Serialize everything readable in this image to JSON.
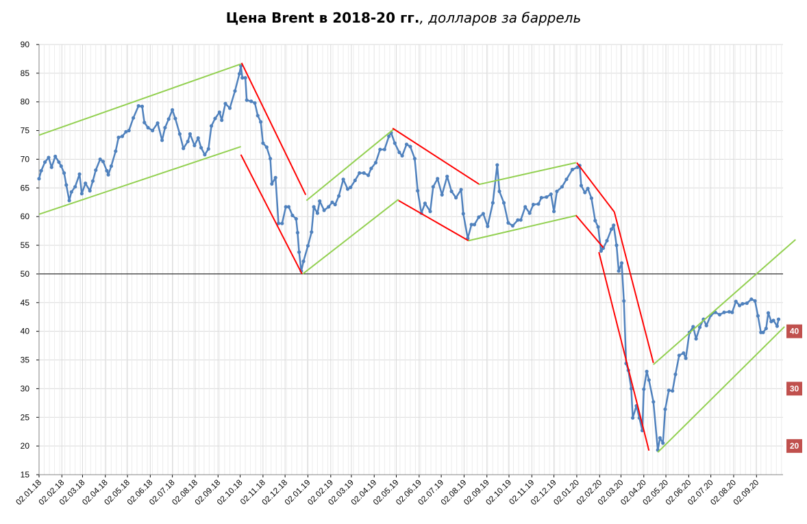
{
  "title": {
    "bold": "Цена Brent в 2018-20 гг.",
    "italic": ", долларов за баррель"
  },
  "chart_data": {
    "type": "line",
    "title": "Цена Brent в 2018-20 гг., долларов за баррель",
    "ylim": [
      15,
      90
    ],
    "yticks": [
      15,
      20,
      25,
      30,
      35,
      40,
      45,
      50,
      55,
      60,
      65,
      70,
      75,
      80,
      85,
      90
    ],
    "xlim": [
      "2018-01-02",
      "2020-10-08"
    ],
    "xtick_labels": [
      "02.01.18",
      "02.02.18",
      "02.03.18",
      "02.04.18",
      "02.05.18",
      "02.06.18",
      "02.07.18",
      "02.08.18",
      "02.09.18",
      "02.10.18",
      "02.11.18",
      "02.12.18",
      "02.01.19",
      "02.02.19",
      "02.03.19",
      "02.04.19",
      "02.05.19",
      "02.06.19",
      "02.07.19",
      "02.08.19",
      "02.09.19",
      "02.10.19",
      "02.11.19",
      "02.12.19",
      "02.01.20",
      "02.02.20",
      "02.03.20",
      "02.04.20",
      "02.05.20",
      "02.06.20",
      "02.07.20",
      "02.08.20",
      "02.09.20"
    ],
    "grid": true,
    "reference_line": 50,
    "series": [
      {
        "color": "#4f81bd",
        "points": [
          [
            "2018-01-02",
            66.6
          ],
          [
            "2018-01-05",
            68.0
          ],
          [
            "2018-01-10",
            69.5
          ],
          [
            "2018-01-15",
            70.3
          ],
          [
            "2018-01-19",
            68.6
          ],
          [
            "2018-01-24",
            70.5
          ],
          [
            "2018-01-29",
            69.5
          ],
          [
            "2018-02-01",
            68.8
          ],
          [
            "2018-02-05",
            67.6
          ],
          [
            "2018-02-08",
            65.5
          ],
          [
            "2018-02-12",
            62.8
          ],
          [
            "2018-02-15",
            64.3
          ],
          [
            "2018-02-20",
            65.2
          ],
          [
            "2018-02-26",
            67.4
          ],
          [
            "2018-03-01",
            64.0
          ],
          [
            "2018-03-06",
            65.8
          ],
          [
            "2018-03-12",
            64.5
          ],
          [
            "2018-03-16",
            66.2
          ],
          [
            "2018-03-20",
            68.1
          ],
          [
            "2018-03-26",
            70.0
          ],
          [
            "2018-03-30",
            69.6
          ],
          [
            "2018-04-04",
            68.0
          ],
          [
            "2018-04-06",
            67.3
          ],
          [
            "2018-04-10",
            68.8
          ],
          [
            "2018-04-16",
            71.4
          ],
          [
            "2018-04-20",
            73.8
          ],
          [
            "2018-04-25",
            74.0
          ],
          [
            "2018-04-30",
            74.8
          ],
          [
            "2018-05-04",
            75.0
          ],
          [
            "2018-05-10",
            77.2
          ],
          [
            "2018-05-17",
            79.3
          ],
          [
            "2018-05-22",
            79.2
          ],
          [
            "2018-05-25",
            76.4
          ],
          [
            "2018-05-30",
            75.5
          ],
          [
            "2018-06-05",
            75.0
          ],
          [
            "2018-06-12",
            76.3
          ],
          [
            "2018-06-18",
            73.3
          ],
          [
            "2018-06-22",
            75.5
          ],
          [
            "2018-06-27",
            77.0
          ],
          [
            "2018-07-02",
            78.6
          ],
          [
            "2018-07-06",
            77.1
          ],
          [
            "2018-07-12",
            74.4
          ],
          [
            "2018-07-17",
            71.9
          ],
          [
            "2018-07-23",
            73.1
          ],
          [
            "2018-07-26",
            74.4
          ],
          [
            "2018-08-01",
            72.4
          ],
          [
            "2018-08-06",
            73.7
          ],
          [
            "2018-08-10",
            72.0
          ],
          [
            "2018-08-15",
            70.8
          ],
          [
            "2018-08-20",
            71.8
          ],
          [
            "2018-08-24",
            75.8
          ],
          [
            "2018-08-29",
            77.1
          ],
          [
            "2018-09-04",
            78.2
          ],
          [
            "2018-09-07",
            76.8
          ],
          [
            "2018-09-12",
            79.7
          ],
          [
            "2018-09-18",
            78.9
          ],
          [
            "2018-09-25",
            81.9
          ],
          [
            "2018-10-01",
            84.9
          ],
          [
            "2018-10-03",
            86.3
          ],
          [
            "2018-10-05",
            84.2
          ],
          [
            "2018-10-09",
            84.2
          ],
          [
            "2018-10-11",
            80.3
          ],
          [
            "2018-10-17",
            80.1
          ],
          [
            "2018-10-22",
            79.8
          ],
          [
            "2018-10-26",
            77.6
          ],
          [
            "2018-10-30",
            76.5
          ],
          [
            "2018-11-02",
            72.8
          ],
          [
            "2018-11-07",
            72.1
          ],
          [
            "2018-11-12",
            70.1
          ],
          [
            "2018-11-14",
            65.7
          ],
          [
            "2018-11-19",
            66.8
          ],
          [
            "2018-11-23",
            58.8
          ],
          [
            "2018-11-28",
            58.8
          ],
          [
            "2018-12-03",
            61.7
          ],
          [
            "2018-12-07",
            61.7
          ],
          [
            "2018-12-12",
            60.2
          ],
          [
            "2018-12-17",
            59.6
          ],
          [
            "2018-12-19",
            57.2
          ],
          [
            "2018-12-21",
            53.8
          ],
          [
            "2018-12-24",
            50.5
          ],
          [
            "2018-12-27",
            52.2
          ],
          [
            "2019-01-02",
            54.9
          ],
          [
            "2019-01-07",
            57.3
          ],
          [
            "2019-01-10",
            61.7
          ],
          [
            "2019-01-15",
            60.6
          ],
          [
            "2019-01-18",
            62.7
          ],
          [
            "2019-01-24",
            61.1
          ],
          [
            "2019-01-30",
            61.7
          ],
          [
            "2019-02-04",
            62.5
          ],
          [
            "2019-02-08",
            62.1
          ],
          [
            "2019-02-13",
            63.6
          ],
          [
            "2019-02-19",
            66.5
          ],
          [
            "2019-02-25",
            64.8
          ],
          [
            "2019-03-01",
            65.1
          ],
          [
            "2019-03-07",
            66.3
          ],
          [
            "2019-03-13",
            67.6
          ],
          [
            "2019-03-19",
            67.6
          ],
          [
            "2019-03-25",
            67.2
          ],
          [
            "2019-03-29",
            68.4
          ],
          [
            "2019-04-04",
            69.4
          ],
          [
            "2019-04-10",
            71.7
          ],
          [
            "2019-04-16",
            71.7
          ],
          [
            "2019-04-22",
            74.0
          ],
          [
            "2019-04-25",
            74.6
          ],
          [
            "2019-04-30",
            72.8
          ],
          [
            "2019-05-06",
            71.2
          ],
          [
            "2019-05-10",
            70.6
          ],
          [
            "2019-05-16",
            72.6
          ],
          [
            "2019-05-21",
            72.2
          ],
          [
            "2019-05-27",
            70.1
          ],
          [
            "2019-05-31",
            64.5
          ],
          [
            "2019-06-05",
            60.6
          ],
          [
            "2019-06-10",
            62.3
          ],
          [
            "2019-06-17",
            60.9
          ],
          [
            "2019-06-21",
            65.2
          ],
          [
            "2019-06-27",
            66.6
          ],
          [
            "2019-07-03",
            63.8
          ],
          [
            "2019-07-10",
            67.0
          ],
          [
            "2019-07-16",
            64.4
          ],
          [
            "2019-07-22",
            63.3
          ],
          [
            "2019-07-29",
            64.7
          ],
          [
            "2019-08-01",
            60.5
          ],
          [
            "2019-08-07",
            56.2
          ],
          [
            "2019-08-12",
            58.6
          ],
          [
            "2019-08-16",
            58.6
          ],
          [
            "2019-08-22",
            59.9
          ],
          [
            "2019-08-28",
            60.5
          ],
          [
            "2019-09-03",
            58.3
          ],
          [
            "2019-09-10",
            62.4
          ],
          [
            "2019-09-16",
            69.0
          ],
          [
            "2019-09-19",
            64.4
          ],
          [
            "2019-09-25",
            62.4
          ],
          [
            "2019-10-01",
            58.9
          ],
          [
            "2019-10-07",
            58.4
          ],
          [
            "2019-10-14",
            59.4
          ],
          [
            "2019-10-18",
            59.4
          ],
          [
            "2019-10-24",
            61.7
          ],
          [
            "2019-10-30",
            60.6
          ],
          [
            "2019-11-04",
            62.1
          ],
          [
            "2019-11-11",
            62.2
          ],
          [
            "2019-11-15",
            63.3
          ],
          [
            "2019-11-22",
            63.4
          ],
          [
            "2019-11-28",
            63.9
          ],
          [
            "2019-12-02",
            60.9
          ],
          [
            "2019-12-06",
            64.4
          ],
          [
            "2019-12-13",
            65.2
          ],
          [
            "2019-12-19",
            66.5
          ],
          [
            "2019-12-27",
            68.2
          ],
          [
            "2020-01-03",
            68.6
          ],
          [
            "2020-01-06",
            68.9
          ],
          [
            "2020-01-08",
            65.4
          ],
          [
            "2020-01-13",
            64.2
          ],
          [
            "2020-01-17",
            64.9
          ],
          [
            "2020-01-22",
            63.2
          ],
          [
            "2020-01-27",
            59.3
          ],
          [
            "2020-01-31",
            58.2
          ],
          [
            "2020-02-04",
            54.0
          ],
          [
            "2020-02-07",
            54.5
          ],
          [
            "2020-02-12",
            55.8
          ],
          [
            "2020-02-18",
            57.8
          ],
          [
            "2020-02-21",
            58.5
          ],
          [
            "2020-02-25",
            55.0
          ],
          [
            "2020-02-28",
            50.5
          ],
          [
            "2020-03-03",
            51.9
          ],
          [
            "2020-03-06",
            45.3
          ],
          [
            "2020-03-09",
            34.4
          ],
          [
            "2020-03-12",
            33.2
          ],
          [
            "2020-03-16",
            30.0
          ],
          [
            "2020-03-18",
            24.9
          ],
          [
            "2020-03-23",
            27.0
          ],
          [
            "2020-03-27",
            24.9
          ],
          [
            "2020-03-31",
            22.7
          ],
          [
            "2020-04-02",
            29.9
          ],
          [
            "2020-04-06",
            33.0
          ],
          [
            "2020-04-09",
            31.5
          ],
          [
            "2020-04-15",
            27.7
          ],
          [
            "2020-04-21",
            19.3
          ],
          [
            "2020-04-24",
            21.4
          ],
          [
            "2020-04-28",
            20.5
          ],
          [
            "2020-05-01",
            26.4
          ],
          [
            "2020-05-06",
            29.7
          ],
          [
            "2020-05-11",
            29.6
          ],
          [
            "2020-05-15",
            32.5
          ],
          [
            "2020-05-20",
            35.8
          ],
          [
            "2020-05-26",
            36.2
          ],
          [
            "2020-05-29",
            35.3
          ],
          [
            "2020-06-03",
            39.8
          ],
          [
            "2020-06-08",
            40.8
          ],
          [
            "2020-06-12",
            38.7
          ],
          [
            "2020-06-17",
            40.7
          ],
          [
            "2020-06-22",
            42.1
          ],
          [
            "2020-06-26",
            41.0
          ],
          [
            "2020-07-02",
            42.8
          ],
          [
            "2020-07-08",
            43.3
          ],
          [
            "2020-07-14",
            42.9
          ],
          [
            "2020-07-20",
            43.3
          ],
          [
            "2020-07-27",
            43.4
          ],
          [
            "2020-07-31",
            43.3
          ],
          [
            "2020-08-05",
            45.2
          ],
          [
            "2020-08-10",
            44.5
          ],
          [
            "2020-08-14",
            44.8
          ],
          [
            "2020-08-20",
            44.9
          ],
          [
            "2020-08-26",
            45.6
          ],
          [
            "2020-08-31",
            45.3
          ],
          [
            "2020-09-04",
            42.7
          ],
          [
            "2020-09-08",
            39.8
          ],
          [
            "2020-09-11",
            39.8
          ],
          [
            "2020-09-15",
            40.5
          ],
          [
            "2020-09-18",
            43.2
          ],
          [
            "2020-09-22",
            41.7
          ],
          [
            "2020-09-25",
            41.9
          ],
          [
            "2020-09-30",
            40.9
          ],
          [
            "2020-10-02",
            42.1
          ]
        ]
      }
    ],
    "trend_lines": [
      {
        "color": "#92d050",
        "from": [
          "2018-01-02",
          74.2
        ],
        "to": [
          "2018-10-03",
          86.6
        ]
      },
      {
        "color": "#92d050",
        "from": [
          "2018-01-02",
          60.4
        ],
        "to": [
          "2018-10-03",
          72.2
        ]
      },
      {
        "color": "#ff0000",
        "from": [
          "2018-10-04",
          86.8
        ],
        "to": [
          "2018-12-30",
          63.8
        ]
      },
      {
        "color": "#ff0000",
        "from": [
          "2018-10-03",
          70.8
        ],
        "to": [
          "2018-12-25",
          50.0
        ]
      },
      {
        "color": "#92d050",
        "from": [
          "2018-12-26",
          50.0
        ],
        "to": [
          "2019-05-05",
          63.0
        ]
      },
      {
        "color": "#92d050",
        "from": [
          "2018-12-31",
          62.8
        ],
        "to": [
          "2019-04-28",
          75.2
        ]
      },
      {
        "color": "#ff0000",
        "from": [
          "2019-04-27",
          75.4
        ],
        "to": [
          "2019-08-23",
          65.6
        ]
      },
      {
        "color": "#ff0000",
        "from": [
          "2019-05-05",
          62.8
        ],
        "to": [
          "2019-08-08",
          55.8
        ]
      },
      {
        "color": "#92d050",
        "from": [
          "2019-08-22",
          65.6
        ],
        "to": [
          "2020-01-01",
          69.4
        ]
      },
      {
        "color": "#92d050",
        "from": [
          "2019-08-08",
          55.8
        ],
        "to": [
          "2020-01-02",
          60.2
        ]
      },
      {
        "color": "#ff0000",
        "from": [
          "2020-01-02",
          69.4
        ],
        "to": [
          "2020-02-22",
          60.8
        ]
      },
      {
        "color": "#ff0000",
        "from": [
          "2020-01-01",
          60.2
        ],
        "to": [
          "2020-02-07",
          54.6
        ]
      },
      {
        "color": "#ff0000",
        "from": [
          "2020-02-22",
          60.8
        ],
        "to": [
          "2020-04-15",
          34.5
        ]
      },
      {
        "color": "#ff0000",
        "from": [
          "2020-02-01",
          53.8
        ],
        "to": [
          "2020-04-09",
          19.2
        ]
      },
      {
        "color": "#92d050",
        "from": [
          "2020-04-15",
          34.2
        ],
        "to": [
          "2020-10-25",
          56.0
        ]
      },
      {
        "color": "#92d050",
        "from": [
          "2020-04-21",
          18.9
        ],
        "to": [
          "2020-10-10",
          40.8
        ]
      }
    ],
    "badges": [
      {
        "label": "40",
        "value": 40
      },
      {
        "label": "30",
        "value": 30
      },
      {
        "label": "20",
        "value": 20
      }
    ]
  }
}
